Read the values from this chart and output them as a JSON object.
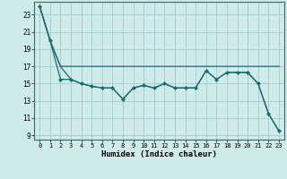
{
  "line1_x": [
    0,
    1,
    2,
    3,
    4,
    5,
    6,
    7,
    8,
    9,
    10,
    11,
    12,
    13,
    14,
    15,
    16,
    17,
    18,
    19,
    20,
    21,
    22,
    23
  ],
  "line1_y": [
    24,
    20,
    17,
    17,
    17,
    17,
    17,
    17,
    17,
    17,
    17,
    17,
    17,
    17,
    17,
    17,
    17,
    17,
    17,
    17,
    17,
    17,
    17,
    17
  ],
  "line2_x": [
    0,
    1,
    2,
    3,
    4,
    5,
    6,
    7,
    8,
    9,
    10,
    11,
    12,
    13,
    14,
    15,
    16,
    17,
    18,
    19,
    20,
    21,
    22,
    23
  ],
  "line2_y": [
    24,
    20,
    17,
    15.5,
    15,
    14.7,
    14.5,
    14.5,
    13.2,
    14.5,
    14.8,
    14.5,
    15,
    14.5,
    14.5,
    14.5,
    16.5,
    15.5,
    16.3,
    16.3,
    16.3,
    15,
    11.5,
    9.5
  ],
  "line3_x": [
    0,
    1,
    2,
    3,
    4,
    5,
    6,
    7,
    8,
    9,
    10,
    11,
    12,
    13,
    14,
    15,
    16,
    17,
    18,
    19,
    20,
    21,
    22,
    23
  ],
  "line3_y": [
    24,
    20,
    15.5,
    15.5,
    15,
    14.7,
    14.5,
    14.5,
    13.2,
    14.5,
    14.8,
    14.5,
    15,
    14.5,
    14.5,
    14.5,
    16.5,
    15.5,
    16.3,
    16.3,
    16.3,
    15,
    11.5,
    9.5
  ],
  "bg_color": "#ceeaea",
  "grid_color": "#aacece",
  "line_color": "#1a6b6b",
  "xlabel": "Humidex (Indice chaleur)",
  "xlim": [
    -0.5,
    23.5
  ],
  "ylim": [
    8.5,
    24.5
  ],
  "yticks": [
    9,
    11,
    13,
    15,
    17,
    19,
    21,
    23
  ],
  "xticks": [
    0,
    1,
    2,
    3,
    4,
    5,
    6,
    7,
    8,
    9,
    10,
    11,
    12,
    13,
    14,
    15,
    16,
    17,
    18,
    19,
    20,
    21,
    22,
    23
  ]
}
